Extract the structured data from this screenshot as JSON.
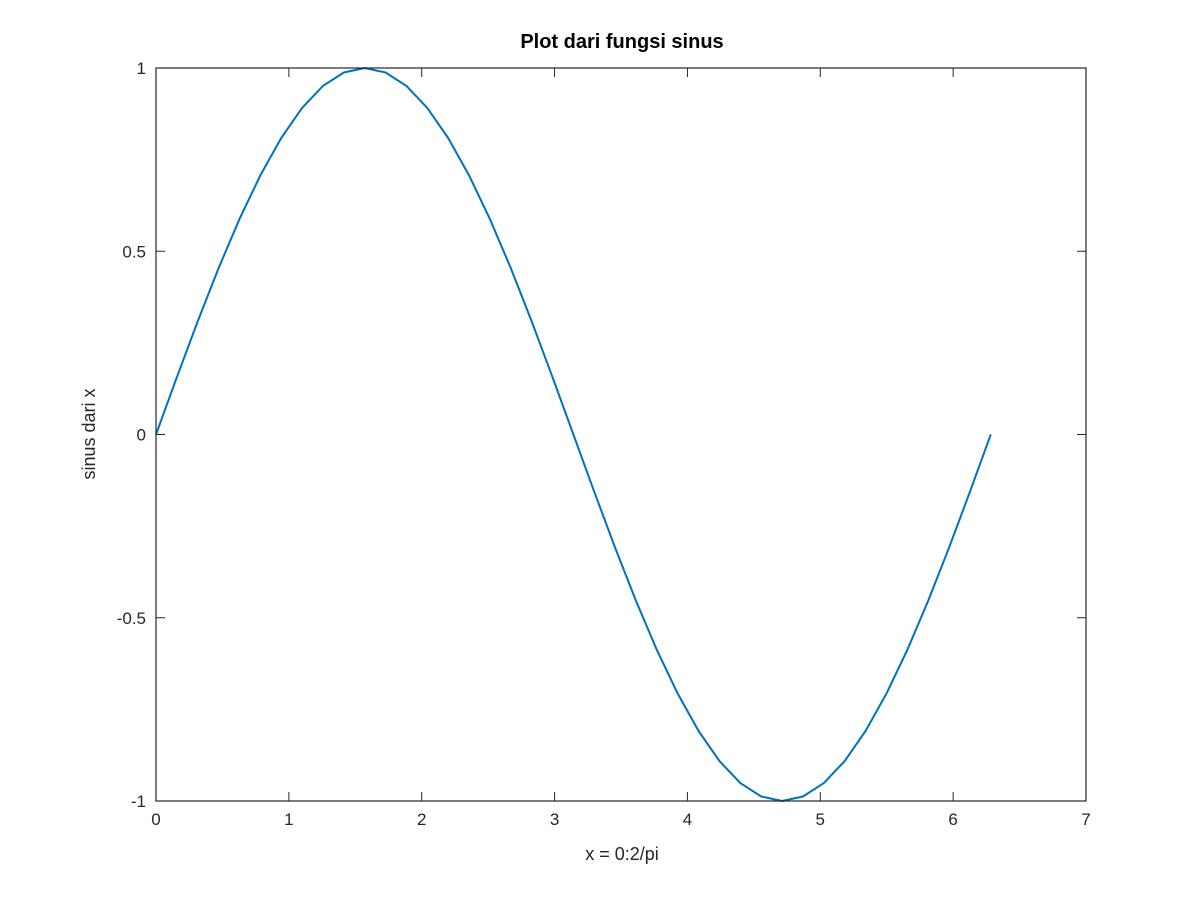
{
  "chart_data": {
    "type": "line",
    "title": "Plot dari fungsi sinus",
    "xlabel": "x = 0:2/pi",
    "ylabel": "sinus dari x",
    "xlim": [
      0,
      7
    ],
    "ylim": [
      -1,
      1
    ],
    "xticks": [
      "0",
      "1",
      "2",
      "3",
      "4",
      "5",
      "6",
      "7"
    ],
    "yticks": [
      "-1",
      "-0.5",
      "0",
      "0.5",
      "1"
    ],
    "grid": false,
    "legend": "none",
    "series": [
      {
        "color": "#0072BD",
        "x": [
          0,
          0.1571,
          0.3142,
          0.4712,
          0.6283,
          0.7854,
          0.9425,
          1.0996,
          1.2566,
          1.4137,
          1.5708,
          1.7279,
          1.885,
          2.042,
          2.1991,
          2.3562,
          2.5133,
          2.6704,
          2.8274,
          2.9845,
          3.1416,
          3.2987,
          3.4558,
          3.6128,
          3.7699,
          3.927,
          4.0841,
          4.2412,
          4.3982,
          4.5553,
          4.7124,
          4.8695,
          5.0265,
          5.1836,
          5.3407,
          5.4978,
          5.6549,
          5.8119,
          5.969,
          6.1261,
          6.2832
        ],
        "y": [
          0,
          0.1564,
          0.309,
          0.454,
          0.5878,
          0.7071,
          0.809,
          0.891,
          0.9511,
          0.9877,
          1,
          0.9877,
          0.9511,
          0.891,
          0.809,
          0.7071,
          0.5878,
          0.454,
          0.309,
          0.1564,
          0,
          -0.1564,
          -0.309,
          -0.454,
          -0.5878,
          -0.7071,
          -0.809,
          -0.891,
          -0.9511,
          -0.9877,
          -1,
          -0.9877,
          -0.9511,
          -0.891,
          -0.809,
          -0.7071,
          -0.5878,
          -0.454,
          -0.309,
          -0.1564,
          0
        ]
      }
    ]
  }
}
